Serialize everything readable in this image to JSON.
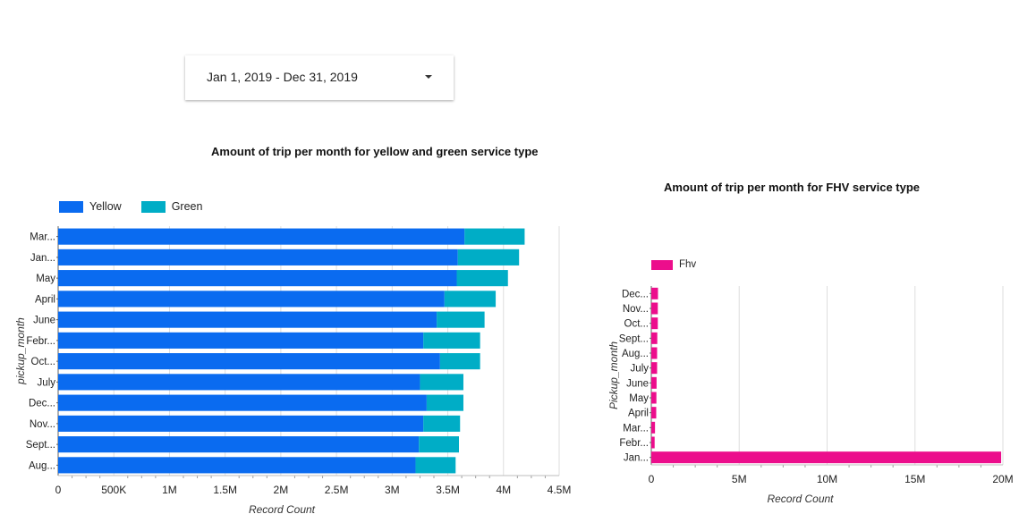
{
  "filter": {
    "date_range": "Jan 1, 2019 - Dec 31, 2019",
    "icon": "dropdown-arrow-icon"
  },
  "chart_data": [
    {
      "type": "bar",
      "orientation": "horizontal",
      "stacked": true,
      "title": "Amount of trip per month for yellow and green service type",
      "xlabel": "Record Count",
      "ylabel": "pickup_month",
      "categories": [
        "Mar...",
        "Jan...",
        "May",
        "April",
        "June",
        "Febr...",
        "Oct...",
        "July",
        "Dec...",
        "Nov...",
        "Sept...",
        "Aug..."
      ],
      "series": [
        {
          "name": "Yellow",
          "color": "#0a6bf0",
          "values": [
            3650000,
            3590000,
            3580000,
            3470000,
            3400000,
            3280000,
            3430000,
            3250000,
            3310000,
            3280000,
            3240000,
            3210000
          ]
        },
        {
          "name": "Green",
          "color": "#00adc6",
          "values": [
            540000,
            550000,
            460000,
            460000,
            430000,
            510000,
            360000,
            390000,
            330000,
            330000,
            360000,
            360000
          ]
        }
      ],
      "xlim": [
        0,
        4500000
      ],
      "xticks": [
        {
          "v": 0,
          "label": "0"
        },
        {
          "v": 500000,
          "label": "500K"
        },
        {
          "v": 1000000,
          "label": "1M"
        },
        {
          "v": 1500000,
          "label": "1.5M"
        },
        {
          "v": 2000000,
          "label": "2M"
        },
        {
          "v": 2500000,
          "label": "2.5M"
        },
        {
          "v": 3000000,
          "label": "3M"
        },
        {
          "v": 3500000,
          "label": "3.5M"
        },
        {
          "v": 4000000,
          "label": "4M"
        },
        {
          "v": 4500000,
          "label": "4.5M"
        }
      ],
      "legend": "top-left",
      "grid": true
    },
    {
      "type": "bar",
      "orientation": "horizontal",
      "title": "Amount of trip per month for FHV service type",
      "xlabel": "Record Count",
      "ylabel": "Pickup_month",
      "categories": [
        "Dec...",
        "Nov...",
        "Oct...",
        "Sept...",
        "Aug...",
        "July",
        "June",
        "May",
        "April",
        "Mar...",
        "Febr...",
        "Jan..."
      ],
      "series": [
        {
          "name": "Fhv",
          "color": "#ec0e8c",
          "values": [
            380000,
            370000,
            370000,
            340000,
            330000,
            330000,
            300000,
            290000,
            280000,
            210000,
            190000,
            19900000
          ]
        }
      ],
      "xlim": [
        0,
        20000000
      ],
      "xticks": [
        {
          "v": 0,
          "label": "0"
        },
        {
          "v": 5000000,
          "label": "5M"
        },
        {
          "v": 10000000,
          "label": "10M"
        },
        {
          "v": 15000000,
          "label": "15M"
        },
        {
          "v": 20000000,
          "label": "20M"
        }
      ],
      "legend": "top-left",
      "grid": true
    }
  ]
}
